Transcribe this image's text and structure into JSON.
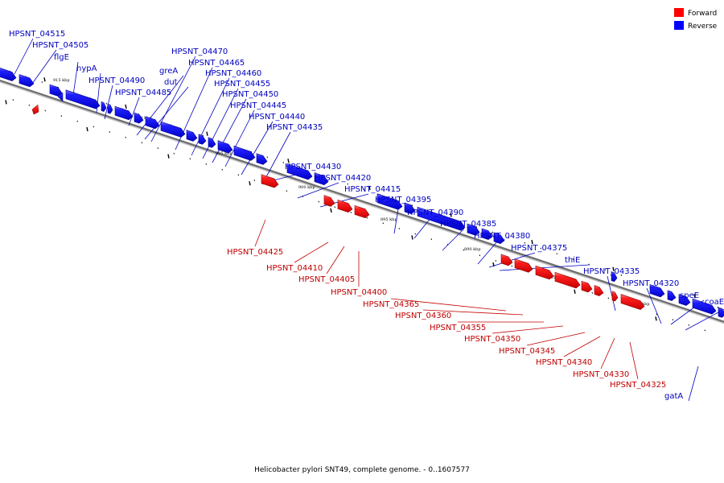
{
  "legend": {
    "forward": {
      "label": "Forward",
      "color": "#ff0000"
    },
    "reverse": {
      "label": "Reverse",
      "color": "#0000ff"
    }
  },
  "caption": "Helicobacter pylori SNT49, complete genome. - 0..1607577",
  "ruler": [
    "915 kbp",
    "910 kbp",
    "905 kbp",
    "900 kbp",
    "895 kbp",
    "890 kbp",
    "885 kbp",
    "880 kbp"
  ],
  "genes": [
    {
      "label": "HPSNT_04515",
      "strand": "reverse"
    },
    {
      "label": "HPSNT_04505",
      "strand": "reverse"
    },
    {
      "label": "flgE",
      "strand": "reverse"
    },
    {
      "label": "hypA",
      "strand": "reverse"
    },
    {
      "label": "HPSNT_04490",
      "strand": "reverse"
    },
    {
      "label": "HPSNT_04485",
      "strand": "reverse"
    },
    {
      "label": "greA",
      "strand": "reverse"
    },
    {
      "label": "dut",
      "strand": "reverse"
    },
    {
      "label": "HPSNT_04470",
      "strand": "reverse"
    },
    {
      "label": "HPSNT_04465",
      "strand": "reverse"
    },
    {
      "label": "HPSNT_04460",
      "strand": "reverse"
    },
    {
      "label": "HPSNT_04455",
      "strand": "reverse"
    },
    {
      "label": "HPSNT_04450",
      "strand": "reverse"
    },
    {
      "label": "HPSNT_04445",
      "strand": "reverse"
    },
    {
      "label": "HPSNT_04440",
      "strand": "reverse"
    },
    {
      "label": "HPSNT_04435",
      "strand": "reverse"
    },
    {
      "label": "HPSNT_04430",
      "strand": "reverse"
    },
    {
      "label": "HPSNT_04420",
      "strand": "reverse"
    },
    {
      "label": "HPSNT_04415",
      "strand": "reverse"
    },
    {
      "label": "HPSNT_04395",
      "strand": "reverse"
    },
    {
      "label": "HPSNT_04390",
      "strand": "reverse"
    },
    {
      "label": "HPSNT_04385",
      "strand": "reverse"
    },
    {
      "label": "HPSNT_04380",
      "strand": "reverse"
    },
    {
      "label": "HPSNT_04375",
      "strand": "reverse"
    },
    {
      "label": "thiE",
      "strand": "reverse"
    },
    {
      "label": "HPSNT_04335",
      "strand": "reverse"
    },
    {
      "label": "HPSNT_04320",
      "strand": "reverse"
    },
    {
      "label": "speE",
      "strand": "reverse"
    },
    {
      "label": "coaE",
      "strand": "reverse"
    },
    {
      "label": "gatA",
      "strand": "reverse"
    },
    {
      "label": "HPSNT_04425",
      "strand": "forward"
    },
    {
      "label": "HPSNT_04410",
      "strand": "forward"
    },
    {
      "label": "HPSNT_04405",
      "strand": "forward"
    },
    {
      "label": "HPSNT_04400",
      "strand": "forward"
    },
    {
      "label": "HPSNT_04365",
      "strand": "forward"
    },
    {
      "label": "HPSNT_04360",
      "strand": "forward"
    },
    {
      "label": "HPSNT_04355",
      "strand": "forward"
    },
    {
      "label": "HPSNT_04350",
      "strand": "forward"
    },
    {
      "label": "HPSNT_04345",
      "strand": "forward"
    },
    {
      "label": "HPSNT_04340",
      "strand": "forward"
    },
    {
      "label": "HPSNT_04330",
      "strand": "forward"
    },
    {
      "label": "HPSNT_04325",
      "strand": "forward"
    }
  ]
}
